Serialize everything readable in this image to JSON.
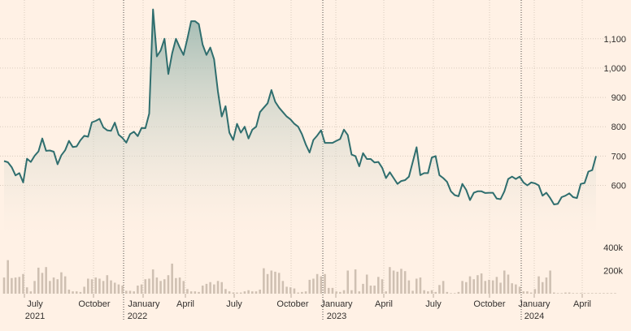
{
  "chart_data": [
    {
      "type": "area",
      "title": "",
      "xlabel": "",
      "ylabel": "",
      "ylim": [
        430,
        1210
      ],
      "y_ticks": [
        600,
        700,
        800,
        900,
        1000,
        1100
      ],
      "y_tick_labels": [
        "600",
        "700",
        "800",
        "900",
        "1,000",
        "1,100"
      ],
      "grid": true,
      "x_month_labels": [
        "July",
        "October",
        "January",
        "April",
        "July",
        "October",
        "January",
        "April",
        "July",
        "October",
        "January",
        "April"
      ],
      "x_year_labels": [
        "2021",
        "2022",
        "2023",
        "2024"
      ],
      "series": [
        {
          "values": [
            683,
            679,
            662,
            634,
            642,
            610,
            691,
            680,
            701,
            716,
            760,
            718,
            719,
            715,
            672,
            703,
            720,
            752,
            731,
            733,
            754,
            769,
            766,
            815,
            820,
            827,
            798,
            788,
            786,
            814,
            773,
            762,
            746,
            775,
            783,
            768,
            796,
            795,
            845,
            1200,
            1040,
            1060,
            1100,
            980,
            1050,
            1100,
            1070,
            1045,
            1100,
            1160,
            1160,
            1150,
            1080,
            1045,
            1070,
            1030,
            920,
            835,
            870,
            780,
            755,
            810,
            780,
            800,
            760,
            790,
            800,
            850,
            865,
            880,
            925,
            885,
            865,
            850,
            835,
            825,
            810,
            800,
            775,
            740,
            712,
            755,
            770,
            788,
            745,
            745,
            745,
            752,
            758,
            790,
            772,
            705,
            700,
            665,
            710,
            690,
            690,
            678,
            680,
            660,
            625,
            645,
            625,
            605,
            615,
            618,
            630,
            680,
            730,
            635,
            642,
            642,
            695,
            700,
            635,
            625,
            612,
            580,
            567,
            563,
            605,
            585,
            550,
            575,
            580,
            580,
            574,
            575,
            575,
            555,
            553,
            580,
            622,
            630,
            622,
            630,
            610,
            600,
            610,
            607,
            600,
            565,
            575,
            557,
            535,
            537,
            560,
            565,
            573,
            560,
            557,
            605,
            608,
            647,
            652,
            700
          ]
        },
        {
          "name": "",
          "values": [
            140,
            290,
            135,
            140,
            145,
            170,
            55,
            20,
            110,
            225,
            180,
            230,
            110,
            140,
            125,
            185,
            150,
            35,
            20,
            20,
            15,
            60,
            130,
            125,
            140,
            130,
            110,
            160,
            115,
            95,
            80,
            70,
            25,
            25,
            20,
            70,
            80,
            125,
            130,
            210,
            140,
            110,
            125,
            160,
            260,
            135,
            140,
            110,
            40,
            20,
            20,
            15,
            70,
            85,
            100,
            80,
            110,
            100,
            40,
            20,
            10,
            10,
            10,
            20,
            30,
            20,
            20,
            35,
            220,
            170,
            200,
            190,
            180,
            110,
            60,
            55,
            45,
            10,
            15,
            20,
            120,
            130,
            170,
            150,
            170,
            50,
            50,
            20,
            15,
            30,
            200,
            30,
            210,
            20,
            85,
            165,
            70,
            70,
            145,
            125,
            20,
            230,
            200,
            190,
            215,
            195,
            115,
            25,
            130,
            140,
            30,
            20,
            30,
            15,
            75,
            110,
            15,
            5,
            5,
            15,
            110,
            100,
            150,
            125,
            160,
            175,
            110,
            120,
            115,
            145,
            95,
            200,
            165,
            90,
            80,
            60,
            20,
            20,
            10,
            40,
            150,
            100,
            140,
            200,
            10,
            5,
            5,
            10,
            10,
            5,
            5,
            5,
            5,
            5,
            5,
            5,
            5,
            5,
            5,
            5,
            5
          ]
        }
      ],
      "volume_ticks": [
        200000,
        400000
      ],
      "volume_tick_labels": [
        "200k",
        "400k"
      ],
      "volume_ylim": [
        0,
        470000
      ]
    }
  ]
}
